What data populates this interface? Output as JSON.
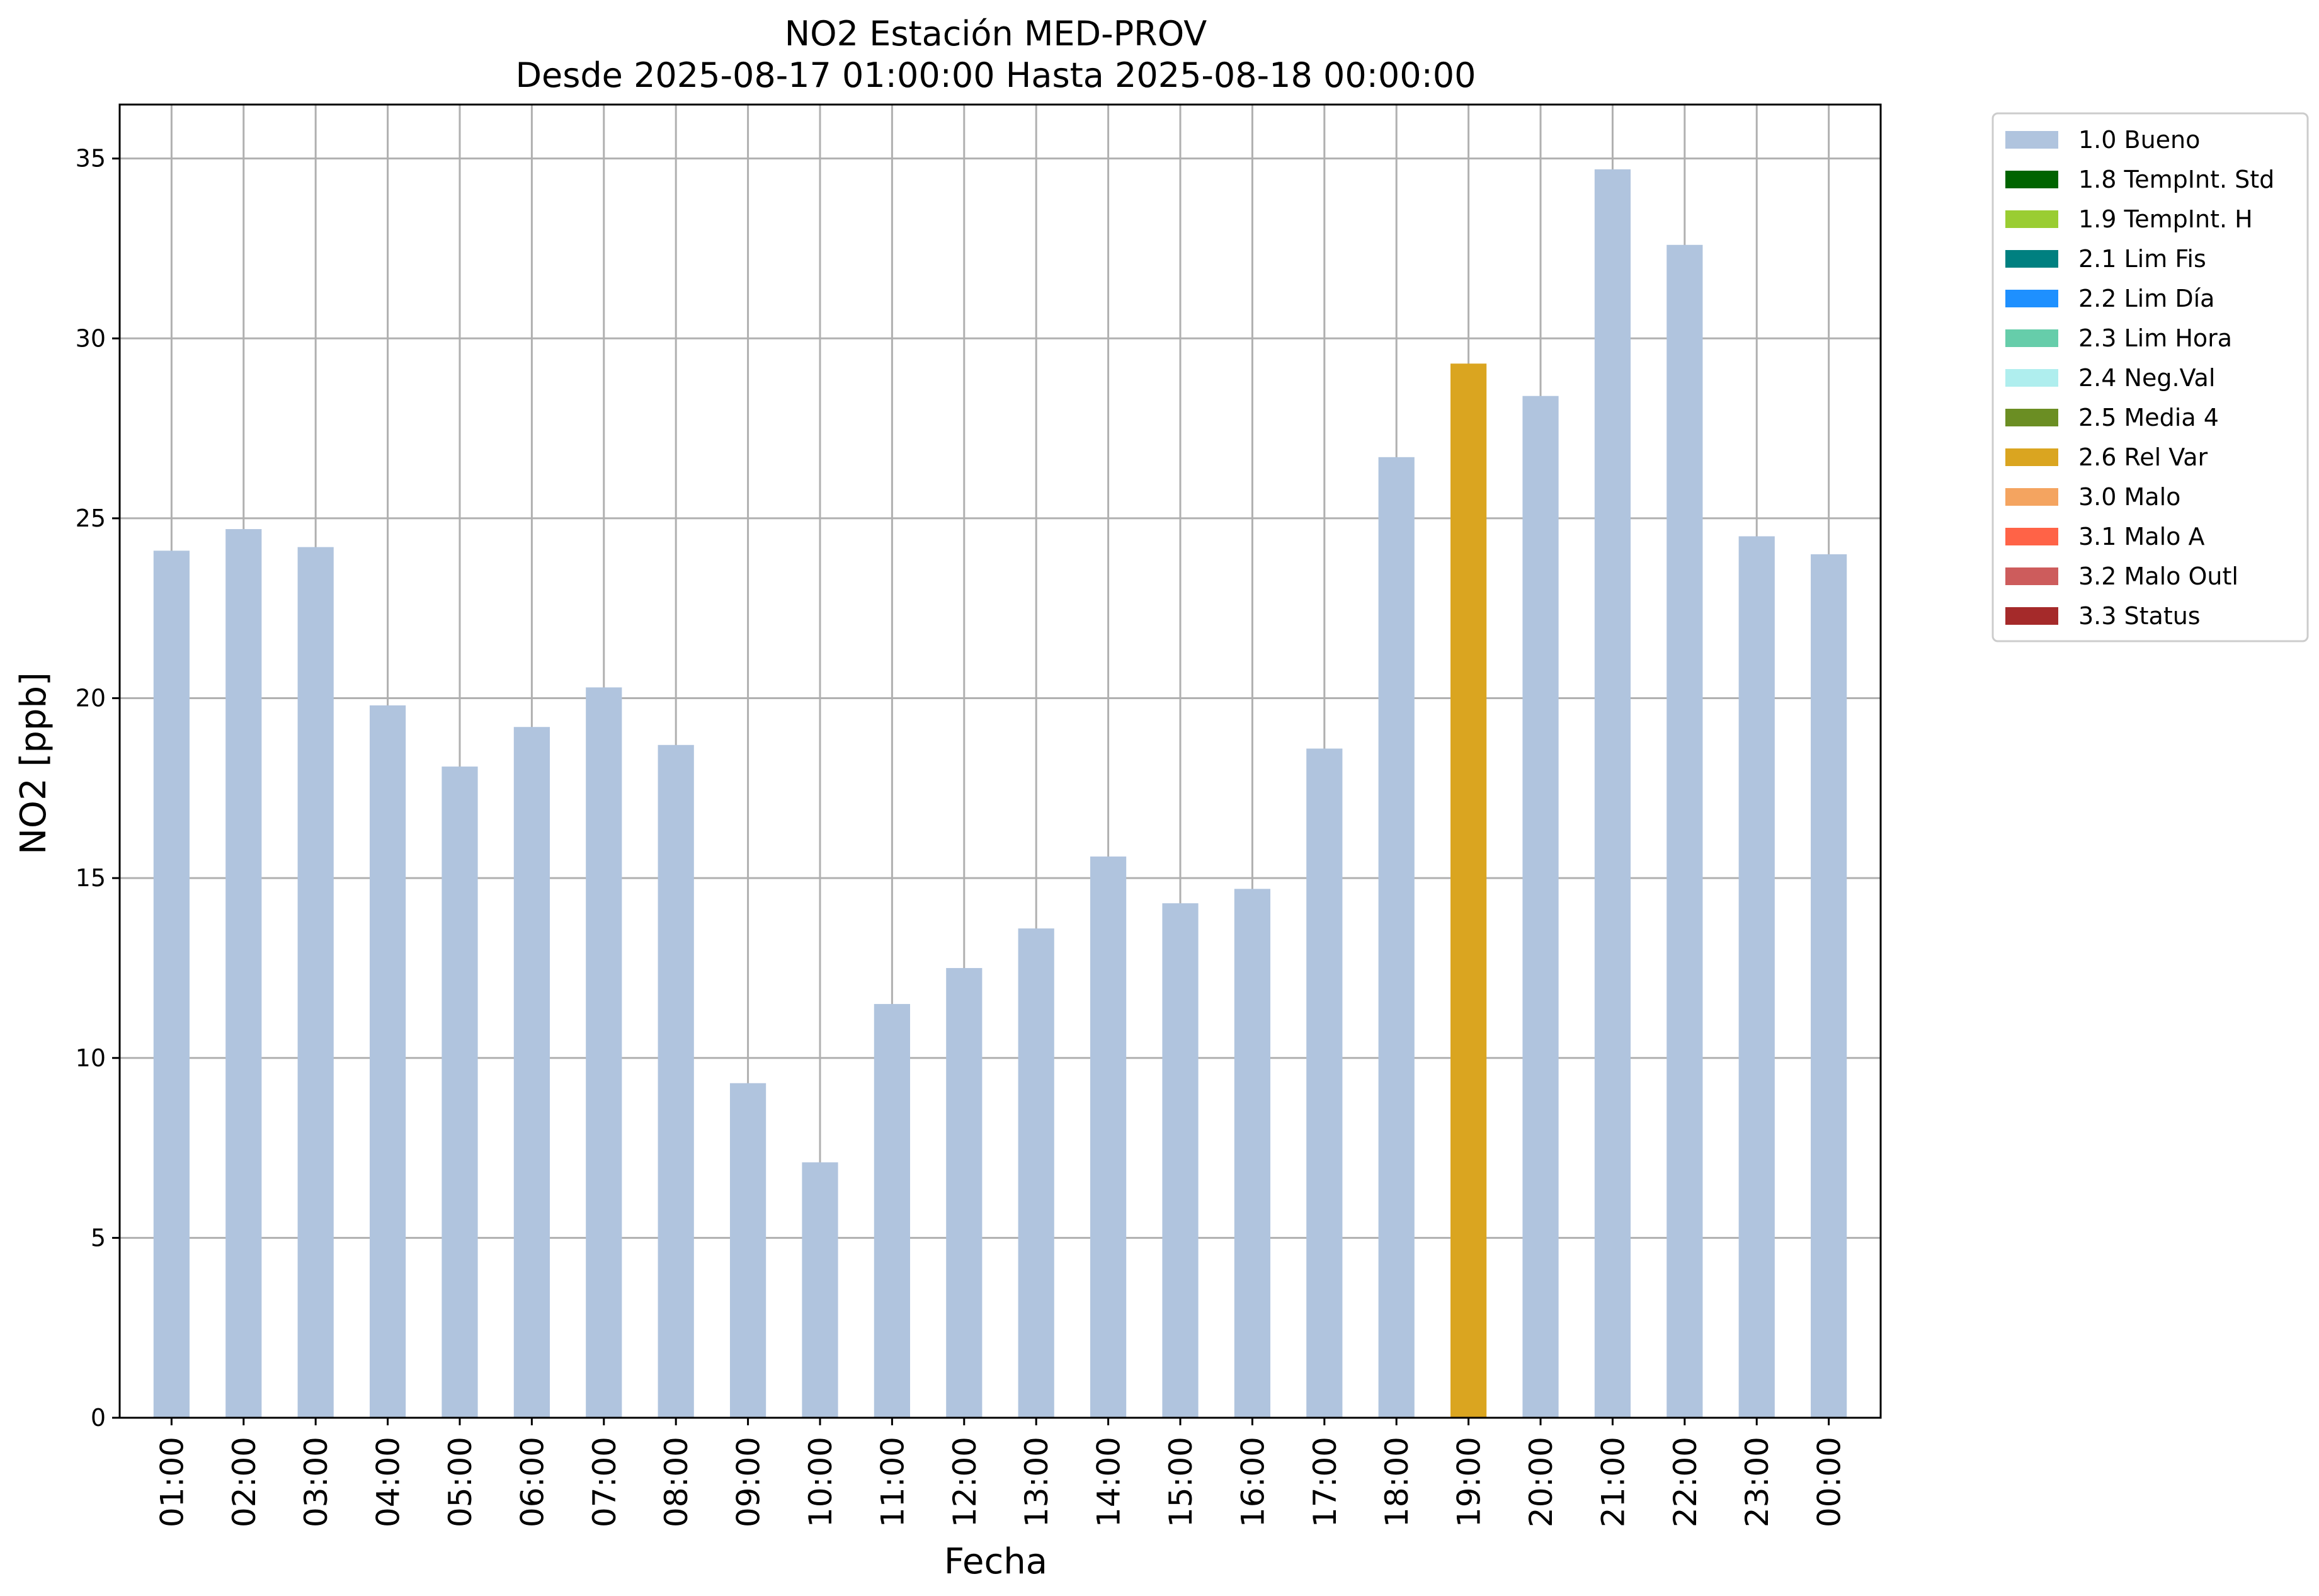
{
  "chart_data": {
    "type": "bar",
    "title": "NO2 Estación MED-PROV",
    "subtitle": "Desde 2025-08-17 01:00:00 Hasta 2025-08-18 00:00:00",
    "xlabel": "Fecha",
    "ylabel": "NO2 [ppb]",
    "ylim": [
      0,
      36.5
    ],
    "yticks": [
      0,
      5,
      10,
      15,
      20,
      25,
      30,
      35
    ],
    "grid": true,
    "legend_position": "outside-top-right",
    "categories": [
      "01:00",
      "02:00",
      "03:00",
      "04:00",
      "05:00",
      "06:00",
      "07:00",
      "08:00",
      "09:00",
      "10:00",
      "11:00",
      "12:00",
      "13:00",
      "14:00",
      "15:00",
      "16:00",
      "17:00",
      "18:00",
      "19:00",
      "20:00",
      "21:00",
      "22:00",
      "23:00",
      "00:00"
    ],
    "values": [
      24.1,
      24.7,
      24.2,
      19.8,
      18.1,
      19.2,
      20.3,
      18.7,
      9.3,
      7.1,
      11.5,
      12.5,
      13.6,
      15.6,
      14.3,
      14.7,
      18.6,
      26.7,
      29.3,
      28.4,
      34.7,
      32.6,
      24.5,
      24.0
    ],
    "flags": [
      "1.0 Bueno",
      "1.0 Bueno",
      "1.0 Bueno",
      "1.0 Bueno",
      "1.0 Bueno",
      "1.0 Bueno",
      "1.0 Bueno",
      "1.0 Bueno",
      "1.0 Bueno",
      "1.0 Bueno",
      "1.0 Bueno",
      "1.0 Bueno",
      "1.0 Bueno",
      "1.0 Bueno",
      "1.0 Bueno",
      "1.0 Bueno",
      "1.0 Bueno",
      "1.0 Bueno",
      "2.6 Rel Var",
      "1.0 Bueno",
      "1.0 Bueno",
      "1.0 Bueno",
      "1.0 Bueno",
      "1.0 Bueno"
    ],
    "legend": [
      {
        "label": "1.0 Bueno",
        "color": "#b0c4de"
      },
      {
        "label": "1.8 TempInt. Std",
        "color": "#006400"
      },
      {
        "label": "1.9 TempInt. H",
        "color": "#9acd32"
      },
      {
        "label": "2.1 Lim Fis",
        "color": "#008080"
      },
      {
        "label": "2.2 Lim Día",
        "color": "#1e90ff"
      },
      {
        "label": "2.3 Lim Hora",
        "color": "#66cdaa"
      },
      {
        "label": "2.4 Neg.Val",
        "color": "#afeeee"
      },
      {
        "label": "2.5 Media 4",
        "color": "#6b8e23"
      },
      {
        "label": "2.6 Rel Var",
        "color": "#daa520"
      },
      {
        "label": "3.0 Malo",
        "color": "#f4a460"
      },
      {
        "label": "3.1 Malo A",
        "color": "#ff6347"
      },
      {
        "label": "3.2 Malo Outl",
        "color": "#cd5c5c"
      },
      {
        "label": "3.3 Status",
        "color": "#a52a2a"
      }
    ],
    "colors": {
      "grid": "#b0b0b0",
      "axis": "#000000"
    }
  }
}
